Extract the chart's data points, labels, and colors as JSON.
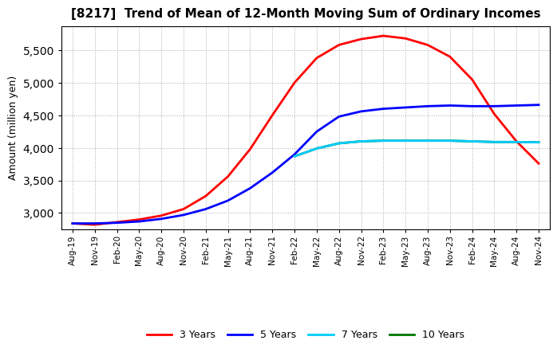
{
  "title": "[8217]  Trend of Mean of 12-Month Moving Sum of Ordinary Incomes",
  "ylabel": "Amount (million yen)",
  "background_color": "#ffffff",
  "plot_background_color": "#ffffff",
  "grid_color": "#aaaaaa",
  "title_fontsize": 11,
  "legend_labels": [
    "3 Years",
    "5 Years",
    "7 Years",
    "10 Years"
  ],
  "legend_colors": [
    "#ff0000",
    "#0000ff",
    "#00ccff",
    "#007700"
  ],
  "ylim": [
    2750,
    5870
  ],
  "yticks": [
    3000,
    3500,
    4000,
    4500,
    5000,
    5500
  ],
  "x_labels": [
    "Aug-19",
    "Nov-19",
    "Feb-20",
    "May-20",
    "Aug-20",
    "Nov-20",
    "Feb-21",
    "May-21",
    "Aug-21",
    "Nov-21",
    "Feb-22",
    "May-22",
    "Aug-22",
    "Nov-22",
    "Feb-23",
    "May-23",
    "Aug-23",
    "Nov-23",
    "Feb-24",
    "May-24",
    "Aug-24",
    "Nov-24"
  ],
  "series_3y": {
    "x_indices": [
      0,
      1,
      2,
      3,
      4,
      5,
      6,
      7,
      8,
      9,
      10,
      11,
      12,
      13,
      14,
      15,
      16,
      17,
      18,
      19,
      20,
      21
    ],
    "y": [
      2840,
      2820,
      2860,
      2900,
      2960,
      3060,
      3260,
      3560,
      3980,
      4500,
      5000,
      5380,
      5580,
      5670,
      5720,
      5680,
      5580,
      5400,
      5050,
      4520,
      4100,
      3760
    ]
  },
  "series_5y": {
    "x_indices": [
      0,
      1,
      2,
      3,
      4,
      5,
      6,
      7,
      8,
      9,
      10,
      11,
      12,
      13,
      14,
      15,
      16,
      17,
      18,
      19,
      20,
      21
    ],
    "y": [
      2840,
      2840,
      2850,
      2870,
      2910,
      2970,
      3060,
      3190,
      3380,
      3620,
      3900,
      4250,
      4480,
      4560,
      4600,
      4620,
      4640,
      4650,
      4640,
      4640,
      4650,
      4660
    ]
  },
  "series_7y": {
    "x_indices": [
      10,
      11,
      12,
      13,
      14,
      15,
      16,
      17,
      18,
      19,
      20,
      21
    ],
    "y": [
      3870,
      3990,
      4070,
      4100,
      4110,
      4110,
      4110,
      4110,
      4100,
      4090,
      4090,
      4085
    ]
  },
  "series_10y": {
    "x_indices": [
      10,
      11,
      12,
      13,
      14,
      15,
      16,
      17,
      18,
      19,
      20,
      21
    ],
    "y": [
      3870,
      3990,
      4070,
      4100,
      4110,
      4110,
      4110,
      4110,
      4100,
      4090,
      4090,
      4085
    ]
  }
}
